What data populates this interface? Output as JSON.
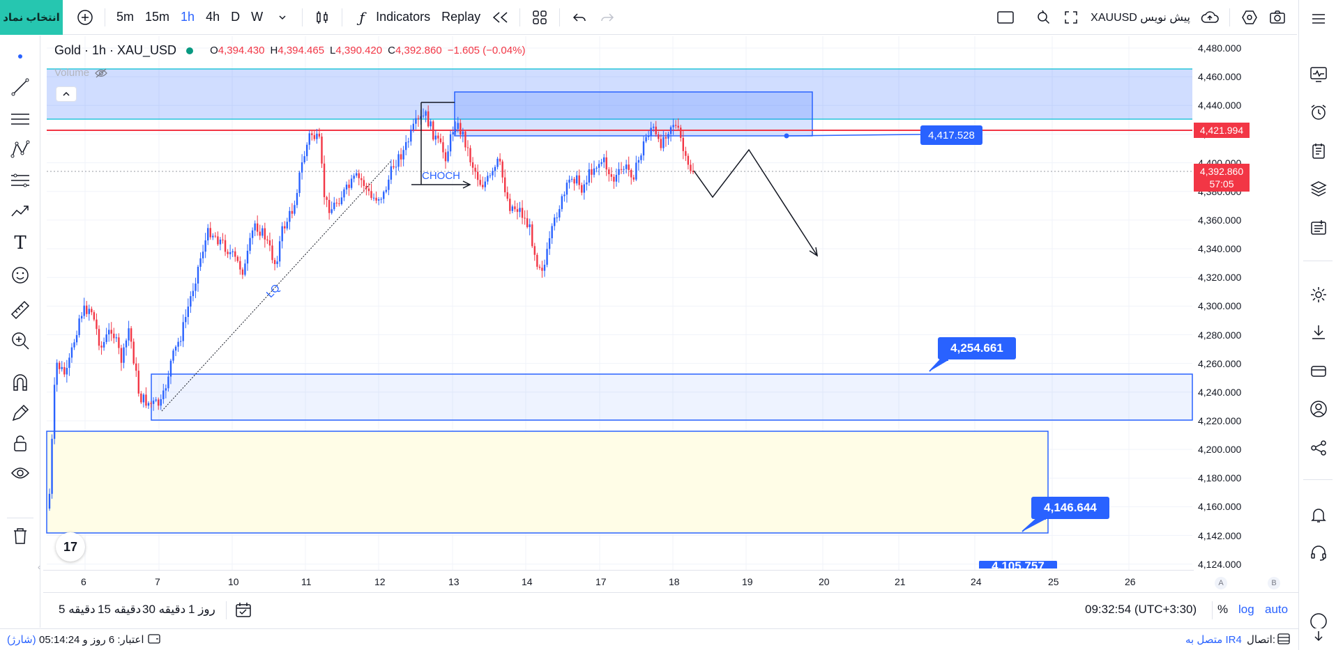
{
  "topbar": {
    "symbol_button": "انتخاب نماد",
    "intervals": [
      "5m",
      "15m",
      "1h",
      "4h",
      "D",
      "W"
    ],
    "active_interval": "1h",
    "indicators": "Indicators",
    "replay": "Replay",
    "draft_label": "XAUUSD پیش نویس"
  },
  "legend": {
    "title": "Gold · 1h · XAU_USD",
    "open_label": "O",
    "open": "4,394.430",
    "high_label": "H",
    "high": "4,394.465",
    "low_label": "L",
    "low": "4,390.420",
    "close_label": "C",
    "close": "4,392.860",
    "change": "−1.605 (−0.04%)",
    "volume": "Volume"
  },
  "chart_data": {
    "type": "candlestick",
    "y_ticks": [
      "4,480.000",
      "4,460.000",
      "4,440.000",
      "4,420.000",
      "4,400.000",
      "4,380.000",
      "4,360.000",
      "4,340.000",
      "4,320.000",
      "4,300.000",
      "4,280.000",
      "4,260.000",
      "4,240.000",
      "4,220.000",
      "4,200.000",
      "4,180.000",
      "4,160.000",
      "4,142.000",
      "4,124.000"
    ],
    "x_ticks": [
      "6",
      "7",
      "10",
      "11",
      "12",
      "13",
      "14",
      "17",
      "18",
      "19",
      "20",
      "21",
      "24",
      "25",
      "26"
    ],
    "price_labels": {
      "level_red": "4,421.994",
      "current": "4,392.860",
      "countdown": "57:05",
      "callout_1": "4,417.528",
      "callout_2": "4,254.661",
      "callout_3": "4,146.644",
      "callout_4": "4,105.757"
    },
    "annotations": {
      "choch": "CHOCH",
      "lq": "LQ"
    },
    "colors": {
      "up": "#2962ff",
      "down": "#f23645",
      "zone": "#2962ff",
      "yellow_zone": "#fffde7",
      "red_line": "#f23645",
      "cyan_line": "#26c6da"
    }
  },
  "axis_buttons": {
    "a": "A",
    "b": "B"
  },
  "bottombar": {
    "ranges": [
      "5 دقیقه",
      "15 دقیقه",
      "30 دقیقه",
      "1 روز"
    ],
    "time": "09:32:54 (UTC+3:30)",
    "percent": "%",
    "log": "log",
    "auto": "auto"
  },
  "statusbar": {
    "credit": "اعتبار: 6 روز و 05:14:24",
    "recharge": "(شارژ)",
    "connection_label": "اتصال:",
    "connection_value": "متصل به IR4"
  },
  "tv_logo": "17"
}
